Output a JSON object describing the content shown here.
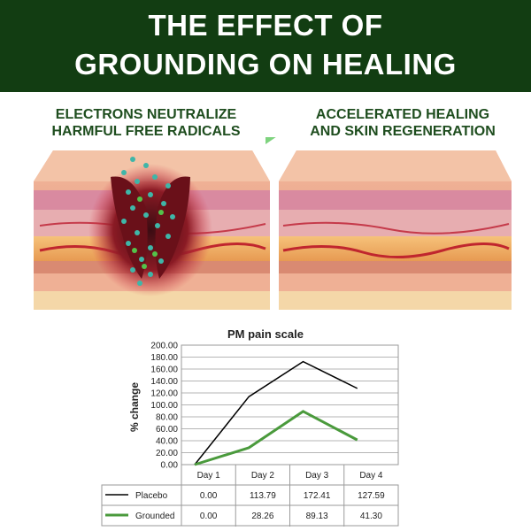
{
  "banner": {
    "line1": "THE EFFECT OF",
    "line2": "GROUNDING ON HEALING"
  },
  "captions": {
    "left": [
      "ELECTRONS NEUTRALIZE",
      "HARMFUL FREE RADICALS"
    ],
    "right": [
      "ACCELERATED HEALING",
      "AND SKIN REGENERATION"
    ]
  },
  "colors": {
    "banner": "#123d12",
    "caption": "#1e4d1e",
    "arrow": "#7ed37e",
    "placebo": "#000000",
    "grounded": "#4a9a3c"
  },
  "chart_data": {
    "type": "line",
    "title": "PM pain scale",
    "ylabel": "% change",
    "xlabel": "",
    "categories": [
      "Day 1",
      "Day 2",
      "Day 3",
      "Day 4"
    ],
    "yticks": [
      "0.00",
      "20.00",
      "40.00",
      "60.00",
      "80.00",
      "100.00",
      "120.00",
      "140.00",
      "160.00",
      "180.00",
      "200.00"
    ],
    "ylim": [
      0,
      200
    ],
    "grid": true,
    "series": [
      {
        "name": "Placebo",
        "color": "#000000",
        "values": [
          0,
          113.79,
          172.41,
          127.59
        ],
        "labels": [
          "0.00",
          "113.79",
          "172.41",
          "127.59"
        ]
      },
      {
        "name": "Grounded",
        "color": "#4a9a3c",
        "values": [
          0,
          28.26,
          89.13,
          41.3
        ],
        "labels": [
          "0.00",
          "28.26",
          "89.13",
          "41.30"
        ]
      }
    ]
  }
}
